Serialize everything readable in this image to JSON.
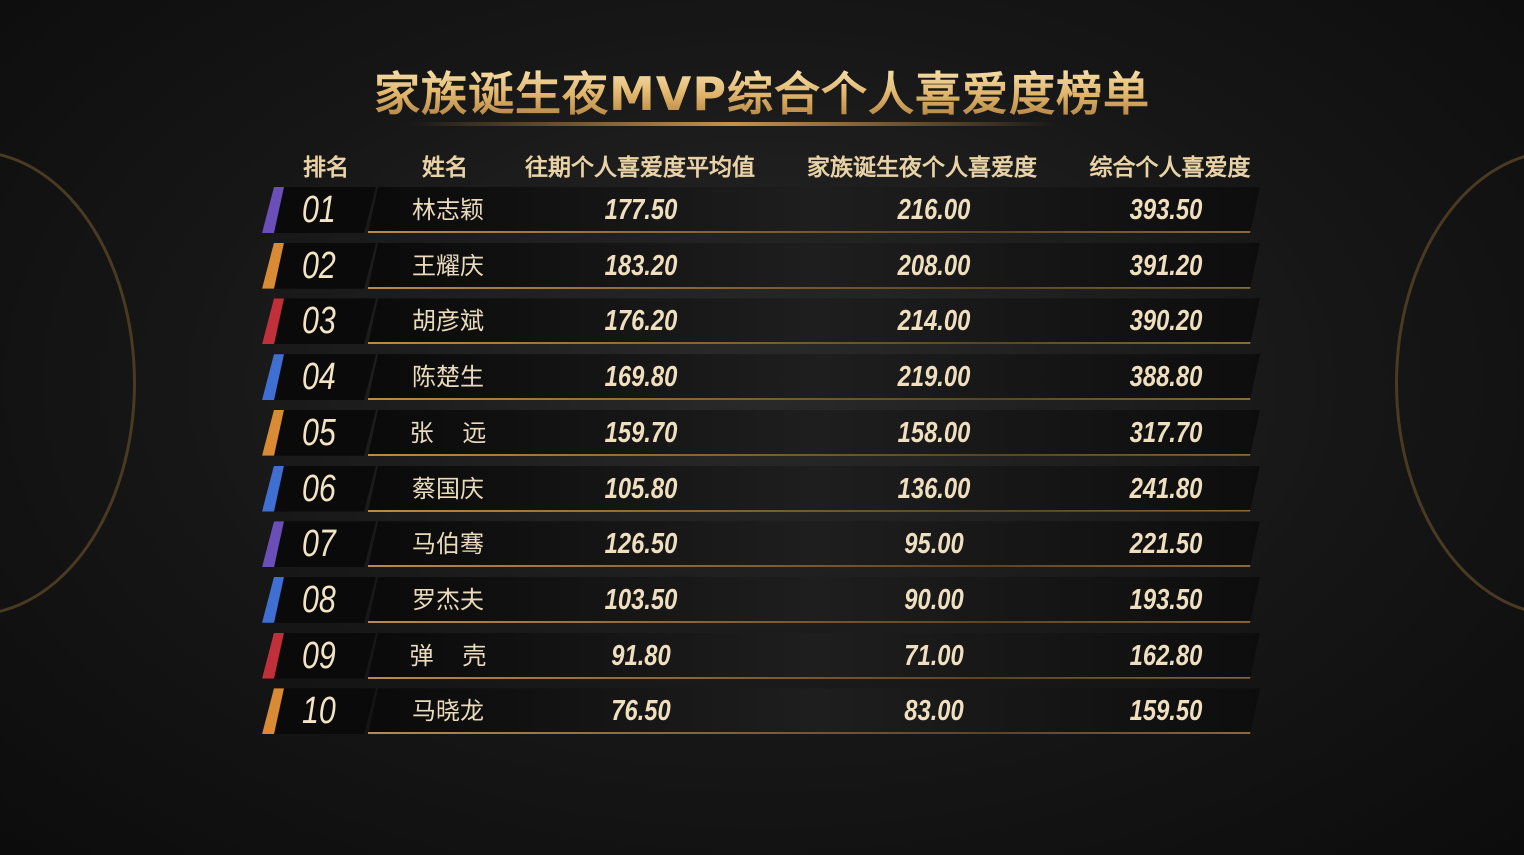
{
  "title": "家族诞生夜MVP综合个人喜爱度榜单",
  "table": {
    "headers": [
      "排名",
      "姓名",
      "往期个人喜爱度平均值",
      "家族诞生夜个人喜爱度",
      "综合个人喜爱度"
    ],
    "rows": [
      [
        "01",
        "林志颖",
        "177.50",
        "216.00",
        "393.50"
      ],
      [
        "02",
        "王耀庆",
        "183.20",
        "208.00",
        "391.20"
      ],
      [
        "03",
        "胡彦斌",
        "176.20",
        "214.00",
        "390.20"
      ],
      [
        "04",
        "陈楚生",
        "169.80",
        "219.00",
        "388.80"
      ],
      [
        "05",
        "张远",
        "159.70",
        "158.00",
        "317.70"
      ],
      [
        "06",
        "蔡国庆",
        "105.80",
        "136.00",
        "241.80"
      ],
      [
        "07",
        "马伯骞",
        "126.50",
        "95.00",
        "221.50"
      ],
      [
        "08",
        "罗杰夫",
        "103.50",
        "90.00",
        "193.50"
      ],
      [
        "09",
        "弹壳",
        "91.80",
        "71.00",
        "162.80"
      ],
      [
        "10",
        "马晓龙",
        "76.50",
        "83.00",
        "159.50"
      ]
    ]
  }
}
